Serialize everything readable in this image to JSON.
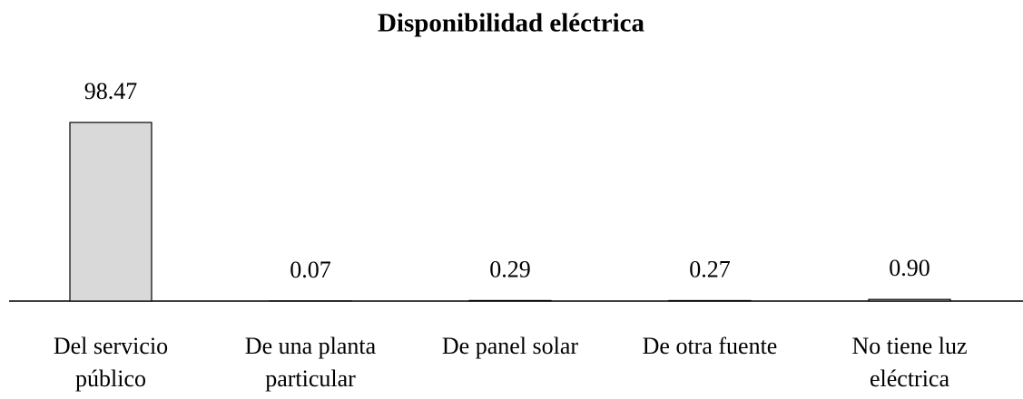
{
  "chart_data": {
    "type": "bar",
    "title": "Disponibilidad eléctrica",
    "categories": [
      [
        "Del servicio",
        "público"
      ],
      [
        "De una planta",
        "particular"
      ],
      [
        "De panel solar"
      ],
      [
        "De otra fuente"
      ],
      [
        "No tiene luz",
        "eléctrica"
      ]
    ],
    "values": [
      98.47,
      0.07,
      0.29,
      0.27,
      0.9
    ],
    "value_labels": [
      "98.47",
      "0.07",
      "0.29",
      "0.27",
      "0.90"
    ],
    "color": "#d9d9d9",
    "ylim": [
      0,
      100
    ]
  }
}
